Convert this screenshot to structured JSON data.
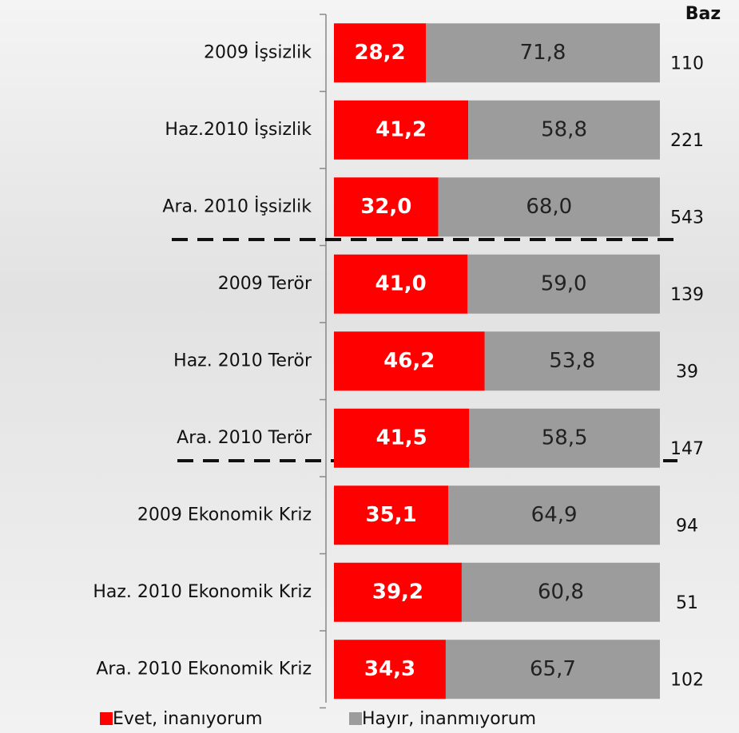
{
  "chart_data": {
    "type": "bar",
    "orientation": "horizontal",
    "stacked": true,
    "categories": [
      "2009 İşsizlik",
      "Haz.2010 İşsizlik",
      "Ara. 2010 İşsizlik",
      "2009 Terör",
      "Haz. 2010 Terör",
      "Ara. 2010 Terör",
      "2009 Ekonomik Kriz",
      "Haz. 2010 Ekonomik Kriz",
      "Ara. 2010 Ekonomik Kriz"
    ],
    "series": [
      {
        "name": "Evet, inanıyorum",
        "color": "#ff0000",
        "values": [
          28.2,
          41.2,
          32.0,
          41.0,
          46.2,
          41.5,
          35.1,
          39.2,
          34.3
        ],
        "value_labels": [
          "28,2",
          "41,2",
          "32,0",
          "41,0",
          "46,2",
          "41,5",
          "35,1",
          "39,2",
          "34,3"
        ]
      },
      {
        "name": "Hayır, inanmıyorum",
        "color": "#9c9c9c",
        "values": [
          71.8,
          58.8,
          68.0,
          59.0,
          53.8,
          58.5,
          64.9,
          60.8,
          65.7
        ],
        "value_labels": [
          "71,8",
          "58,8",
          "68,0",
          "59,0",
          "53,8",
          "58,5",
          "64,9",
          "60,8",
          "65,7"
        ]
      }
    ],
    "xlim": [
      0,
      100
    ],
    "baz": {
      "title": "Baz",
      "values": [
        110,
        221,
        543,
        139,
        39,
        147,
        94,
        51,
        102
      ]
    },
    "legend": "bottom"
  }
}
